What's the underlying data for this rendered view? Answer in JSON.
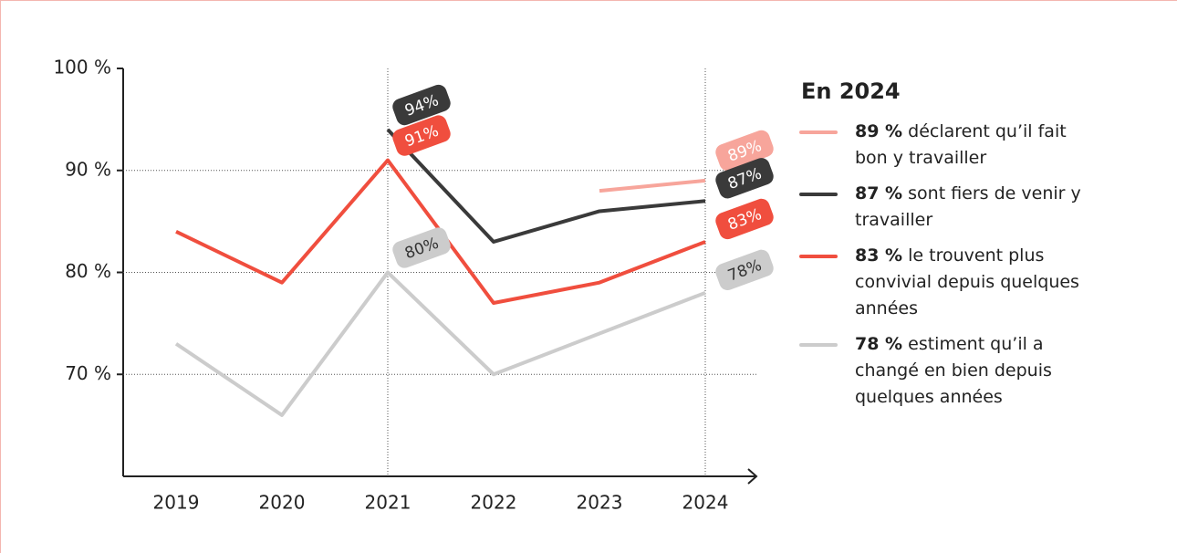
{
  "chart_data": {
    "type": "line",
    "categories": [
      "2019",
      "2020",
      "2021",
      "2022",
      "2023",
      "2024"
    ],
    "ylim": [
      60,
      100
    ],
    "yticks": [
      {
        "value": 70,
        "label": "70 %"
      },
      {
        "value": 80,
        "label": "80 %"
      },
      {
        "value": 90,
        "label": "90 %"
      },
      {
        "value": 100,
        "label": "100 %"
      }
    ],
    "grid": true,
    "legend_title": "En 2024",
    "series": [
      {
        "name": "déclarent qu’il fait bon y travailler",
        "legend_value": "89 %",
        "color": "#f7a59b",
        "label_text": "#ffffff",
        "values": [
          null,
          null,
          null,
          null,
          88,
          89
        ],
        "value_labels": [
          null,
          null,
          null,
          null,
          null,
          "89%"
        ]
      },
      {
        "name": "sont fiers de venir y travailler",
        "legend_value": "87 %",
        "color": "#3a3a3a",
        "label_text": "#ffffff",
        "values": [
          null,
          null,
          94,
          83,
          86,
          87
        ],
        "value_labels": [
          null,
          null,
          "94%",
          null,
          null,
          "87%"
        ]
      },
      {
        "name": "le trouvent plus convivial depuis quelques années",
        "legend_value": "83 %",
        "color": "#f04e3e",
        "label_text": "#ffffff",
        "values": [
          84,
          79,
          91,
          77,
          79,
          83
        ],
        "value_labels": [
          null,
          null,
          "91%",
          null,
          null,
          "83%"
        ]
      },
      {
        "name": "estiment qu’il a changé en bien depuis quelques années",
        "legend_value": "78 %",
        "color": "#cccccc",
        "label_text": "#333333",
        "values": [
          73,
          66,
          80,
          70,
          74,
          78
        ],
        "value_labels": [
          null,
          null,
          "80%",
          null,
          null,
          "78%"
        ]
      }
    ]
  }
}
